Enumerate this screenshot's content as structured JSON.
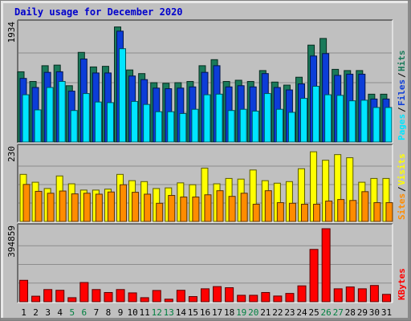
{
  "chart_data": {
    "type": "bar",
    "title": "Daily usage for December 2020",
    "categories": [
      "1",
      "2",
      "3",
      "4",
      "5",
      "6",
      "7",
      "8",
      "9",
      "10",
      "11",
      "12",
      "13",
      "14",
      "15",
      "16",
      "17",
      "18",
      "19",
      "20",
      "21",
      "22",
      "23",
      "24",
      "25",
      "26",
      "27",
      "28",
      "29",
      "30",
      "31"
    ],
    "weekend_days": [
      "5",
      "6",
      "12",
      "13",
      "19",
      "20",
      "26",
      "27"
    ],
    "panels": [
      {
        "name": "top",
        "scale_max_label": "1934",
        "ylim": [
          0,
          1934
        ],
        "series": [
          {
            "name": "Hits",
            "color": "#1a7a5a",
            "values": [
              1160,
              1000,
              1260,
              1270,
              930,
              1480,
              1240,
              1250,
              1900,
              1190,
              1130,
              980,
              970,
              980,
              1000,
              1260,
              1360,
              1000,
              1020,
              1000,
              1180,
              990,
              940,
              1070,
              1600,
              1710,
              1200,
              1180,
              1180,
              790,
              790
            ]
          },
          {
            "name": "Files",
            "color": "#0c3dd8",
            "values": [
              1090,
              940,
              1190,
              1200,
              880,
              1410,
              1180,
              1180,
              1870,
              1130,
              1070,
              930,
              920,
              930,
              950,
              1190,
              1300,
              950,
              970,
              950,
              1170,
              940,
              900,
              1000,
              1460,
              1500,
              1140,
              1160,
              1160,
              750,
              750
            ]
          },
          {
            "name": "Pages",
            "color": "#00e5ff",
            "values": [
              860,
              610,
              980,
              1080,
              600,
              880,
              740,
              730,
              1620,
              750,
              700,
              580,
              580,
              550,
              620,
              860,
              870,
              600,
              620,
              590,
              880,
              620,
              570,
              800,
              1000,
              860,
              850,
              760,
              770,
              650,
              650
            ]
          }
        ]
      },
      {
        "name": "middle",
        "scale_max_label": "230",
        "ylim": [
          0,
          230
        ],
        "series": [
          {
            "name": "Visits",
            "color": "#ffff00",
            "values": [
              150,
              125,
              105,
              145,
              120,
              100,
              100,
              103,
              150,
              130,
              127,
              105,
              107,
              123,
              117,
              170,
              120,
              137,
              135,
              164,
              130,
              122,
              127,
              168,
              222,
              195,
              213,
              203,
              125,
              137,
              137
            ]
          },
          {
            "name": "Sites",
            "color": "#ff8c00",
            "values": [
              118,
              96,
              90,
              97,
              88,
              90,
              87,
              94,
              117,
              93,
              87,
              58,
              83,
              78,
              78,
              85,
              98,
              80,
              90,
              55,
              98,
              60,
              58,
              55,
              55,
              65,
              70,
              67,
              95,
              60,
              60
            ]
          }
        ]
      },
      {
        "name": "bottom",
        "scale_max_label": "394859",
        "ylim": [
          0,
          394859
        ],
        "series": [
          {
            "name": "KBytes",
            "color": "#ff0000",
            "values": [
              116000,
              30000,
              66000,
              62000,
              22000,
              104000,
              66000,
              50000,
              66000,
              48000,
              22000,
              61000,
              14000,
              62000,
              28000,
              70000,
              82000,
              76000,
              35000,
              35000,
              50000,
              31000,
              45000,
              86000,
              283000,
              394859,
              70000,
              80000,
              70000,
              88000,
              40000
            ]
          }
        ]
      }
    ],
    "legend": {
      "top": [
        "Pages",
        "Files",
        "Hits"
      ],
      "middle": [
        "Sites",
        "Visits"
      ],
      "bottom": [
        "KBytes"
      ],
      "placement": "right"
    },
    "colors": {
      "background": "#ffffff",
      "plot_area": "#c0c0c0",
      "frame": "#c0c0c0",
      "title": "#0000cc",
      "weekend_label": "#008040",
      "weekday_label": "#000000",
      "legend_separator": "#000000"
    }
  }
}
